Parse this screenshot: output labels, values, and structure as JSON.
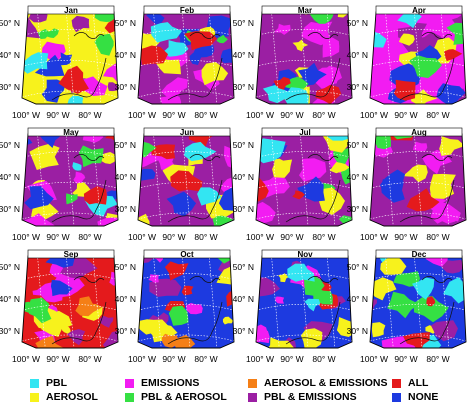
{
  "colors": {
    "pbl": "#33e5f2",
    "aerosol": "#f7f21c",
    "emissions": "#f21cf2",
    "pbl_aerosol": "#35e043",
    "aerosol_emissions": "#f57f16",
    "all": "#e41a1c",
    "pbl_emissions": "#9b1fa3",
    "none": "#1d3ae0"
  },
  "months": [
    {
      "label": "Jan",
      "mix": {
        "aerosol": 0.28,
        "pbl_emissions": 0.22,
        "pbl_aerosol": 0.14,
        "emissions": 0.12,
        "none": 0.12,
        "pbl": 0.06,
        "all": 0.06
      }
    },
    {
      "label": "Feb",
      "mix": {
        "pbl_emissions": 0.3,
        "none": 0.2,
        "emissions": 0.16,
        "aerosol": 0.14,
        "pbl_aerosol": 0.08,
        "pbl": 0.07,
        "all": 0.05
      }
    },
    {
      "label": "Mar",
      "mix": {
        "pbl_emissions": 0.34,
        "emissions": 0.2,
        "aerosol": 0.18,
        "none": 0.1,
        "pbl_aerosol": 0.08,
        "pbl": 0.05,
        "all": 0.05
      }
    },
    {
      "label": "Apr",
      "mix": {
        "emissions": 0.28,
        "pbl_emissions": 0.26,
        "aerosol": 0.16,
        "none": 0.14,
        "pbl_aerosol": 0.06,
        "pbl": 0.05,
        "all": 0.05
      }
    },
    {
      "label": "May",
      "mix": {
        "pbl_emissions": 0.3,
        "aerosol": 0.2,
        "emissions": 0.18,
        "none": 0.14,
        "pbl_aerosol": 0.08,
        "pbl": 0.05,
        "all": 0.05
      }
    },
    {
      "label": "Jun",
      "mix": {
        "pbl_emissions": 0.32,
        "emissions": 0.18,
        "aerosol": 0.16,
        "all": 0.12,
        "none": 0.1,
        "pbl_aerosol": 0.07,
        "pbl": 0.05
      }
    },
    {
      "label": "Jul",
      "mix": {
        "pbl_emissions": 0.3,
        "emissions": 0.2,
        "pbl_aerosol": 0.16,
        "aerosol": 0.14,
        "none": 0.08,
        "all": 0.07,
        "pbl": 0.05
      }
    },
    {
      "label": "Aug",
      "mix": {
        "pbl_emissions": 0.44,
        "emissions": 0.26,
        "aerosol": 0.12,
        "none": 0.08,
        "all": 0.05,
        "pbl_aerosol": 0.05
      }
    },
    {
      "label": "Sep",
      "mix": {
        "all": 0.3,
        "emissions": 0.24,
        "pbl_emissions": 0.14,
        "aerosol": 0.14,
        "aerosol_emissions": 0.08,
        "pbl_aerosol": 0.06,
        "none": 0.04
      }
    },
    {
      "label": "Oct",
      "mix": {
        "none": 0.28,
        "pbl_emissions": 0.18,
        "all": 0.16,
        "aerosol": 0.14,
        "emissions": 0.12,
        "pbl_aerosol": 0.07,
        "aerosol_emissions": 0.05
      }
    },
    {
      "label": "Nov",
      "mix": {
        "none": 0.34,
        "pbl_emissions": 0.2,
        "emissions": 0.16,
        "aerosol": 0.14,
        "all": 0.08,
        "pbl_aerosol": 0.04,
        "pbl": 0.04
      }
    },
    {
      "label": "Dec",
      "mix": {
        "none": 0.3,
        "pbl_aerosol": 0.16,
        "pbl": 0.14,
        "aerosol": 0.14,
        "pbl_emissions": 0.12,
        "emissions": 0.08,
        "all": 0.06
      }
    }
  ],
  "lat_labels": [
    "50° N",
    "40° N",
    "30° N"
  ],
  "lon_labels": [
    "100° W",
    "90° W",
    "80° W"
  ],
  "legend": [
    {
      "key": "pbl",
      "label": "PBL"
    },
    {
      "key": "aerosol",
      "label": "AEROSOL"
    },
    {
      "key": "emissions",
      "label": "EMISSIONS"
    },
    {
      "key": "pbl_aerosol",
      "label": "PBL & AEROSOL"
    },
    {
      "key": "aerosol_emissions",
      "label": "AEROSOL & EMISSIONS"
    },
    {
      "key": "pbl_emissions",
      "label": "PBL & EMISSIONS"
    },
    {
      "key": "all",
      "label": "ALL"
    },
    {
      "key": "none",
      "label": "NONE"
    }
  ]
}
